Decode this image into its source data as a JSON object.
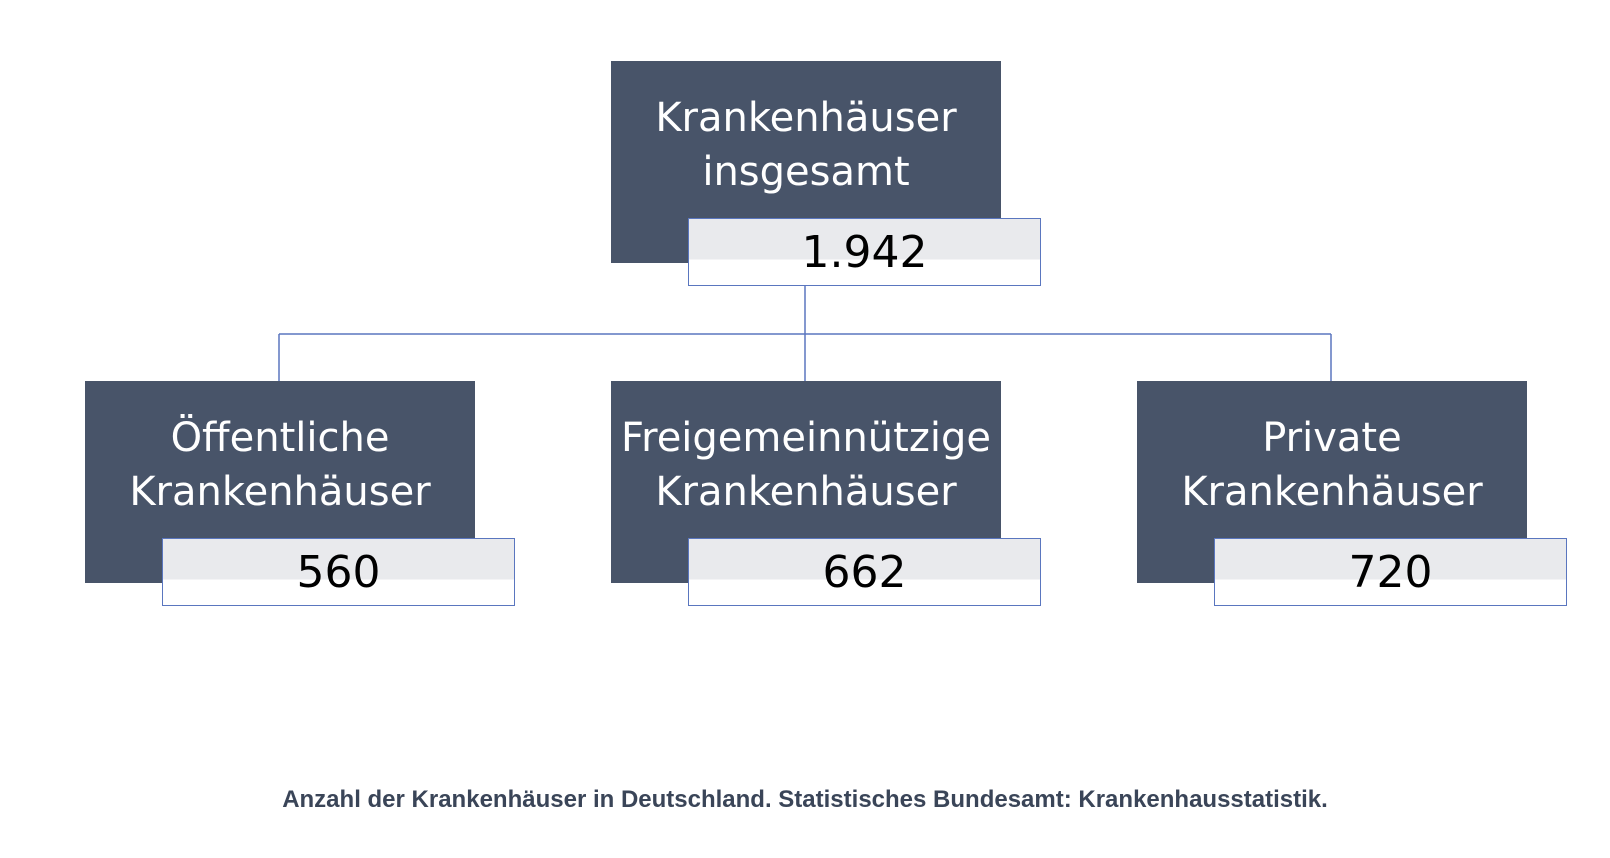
{
  "root": {
    "title_line1": "Krankenhäuser",
    "title_line2": "insgesamt",
    "value": "1.942"
  },
  "children": [
    {
      "title_line1": "Öffentliche",
      "title_line2": "Krankenhäuser",
      "value": "560"
    },
    {
      "title_line1": "Freigemeinnützige",
      "title_line2": "Krankenhäuser",
      "value": "662"
    },
    {
      "title_line1": "Private",
      "title_line2": "Krankenhäuser",
      "value": "720"
    }
  ],
  "caption": "Anzahl der Krankenhäuser in Deutschland. Statistisches Bundesamt: Krankenhausstatistik.",
  "colors": {
    "box_fill": "#485469",
    "value_fill": "#e9eaed",
    "value_border": "#5a76bf",
    "connector": "#5a76bf",
    "caption_text": "#3a4558"
  }
}
